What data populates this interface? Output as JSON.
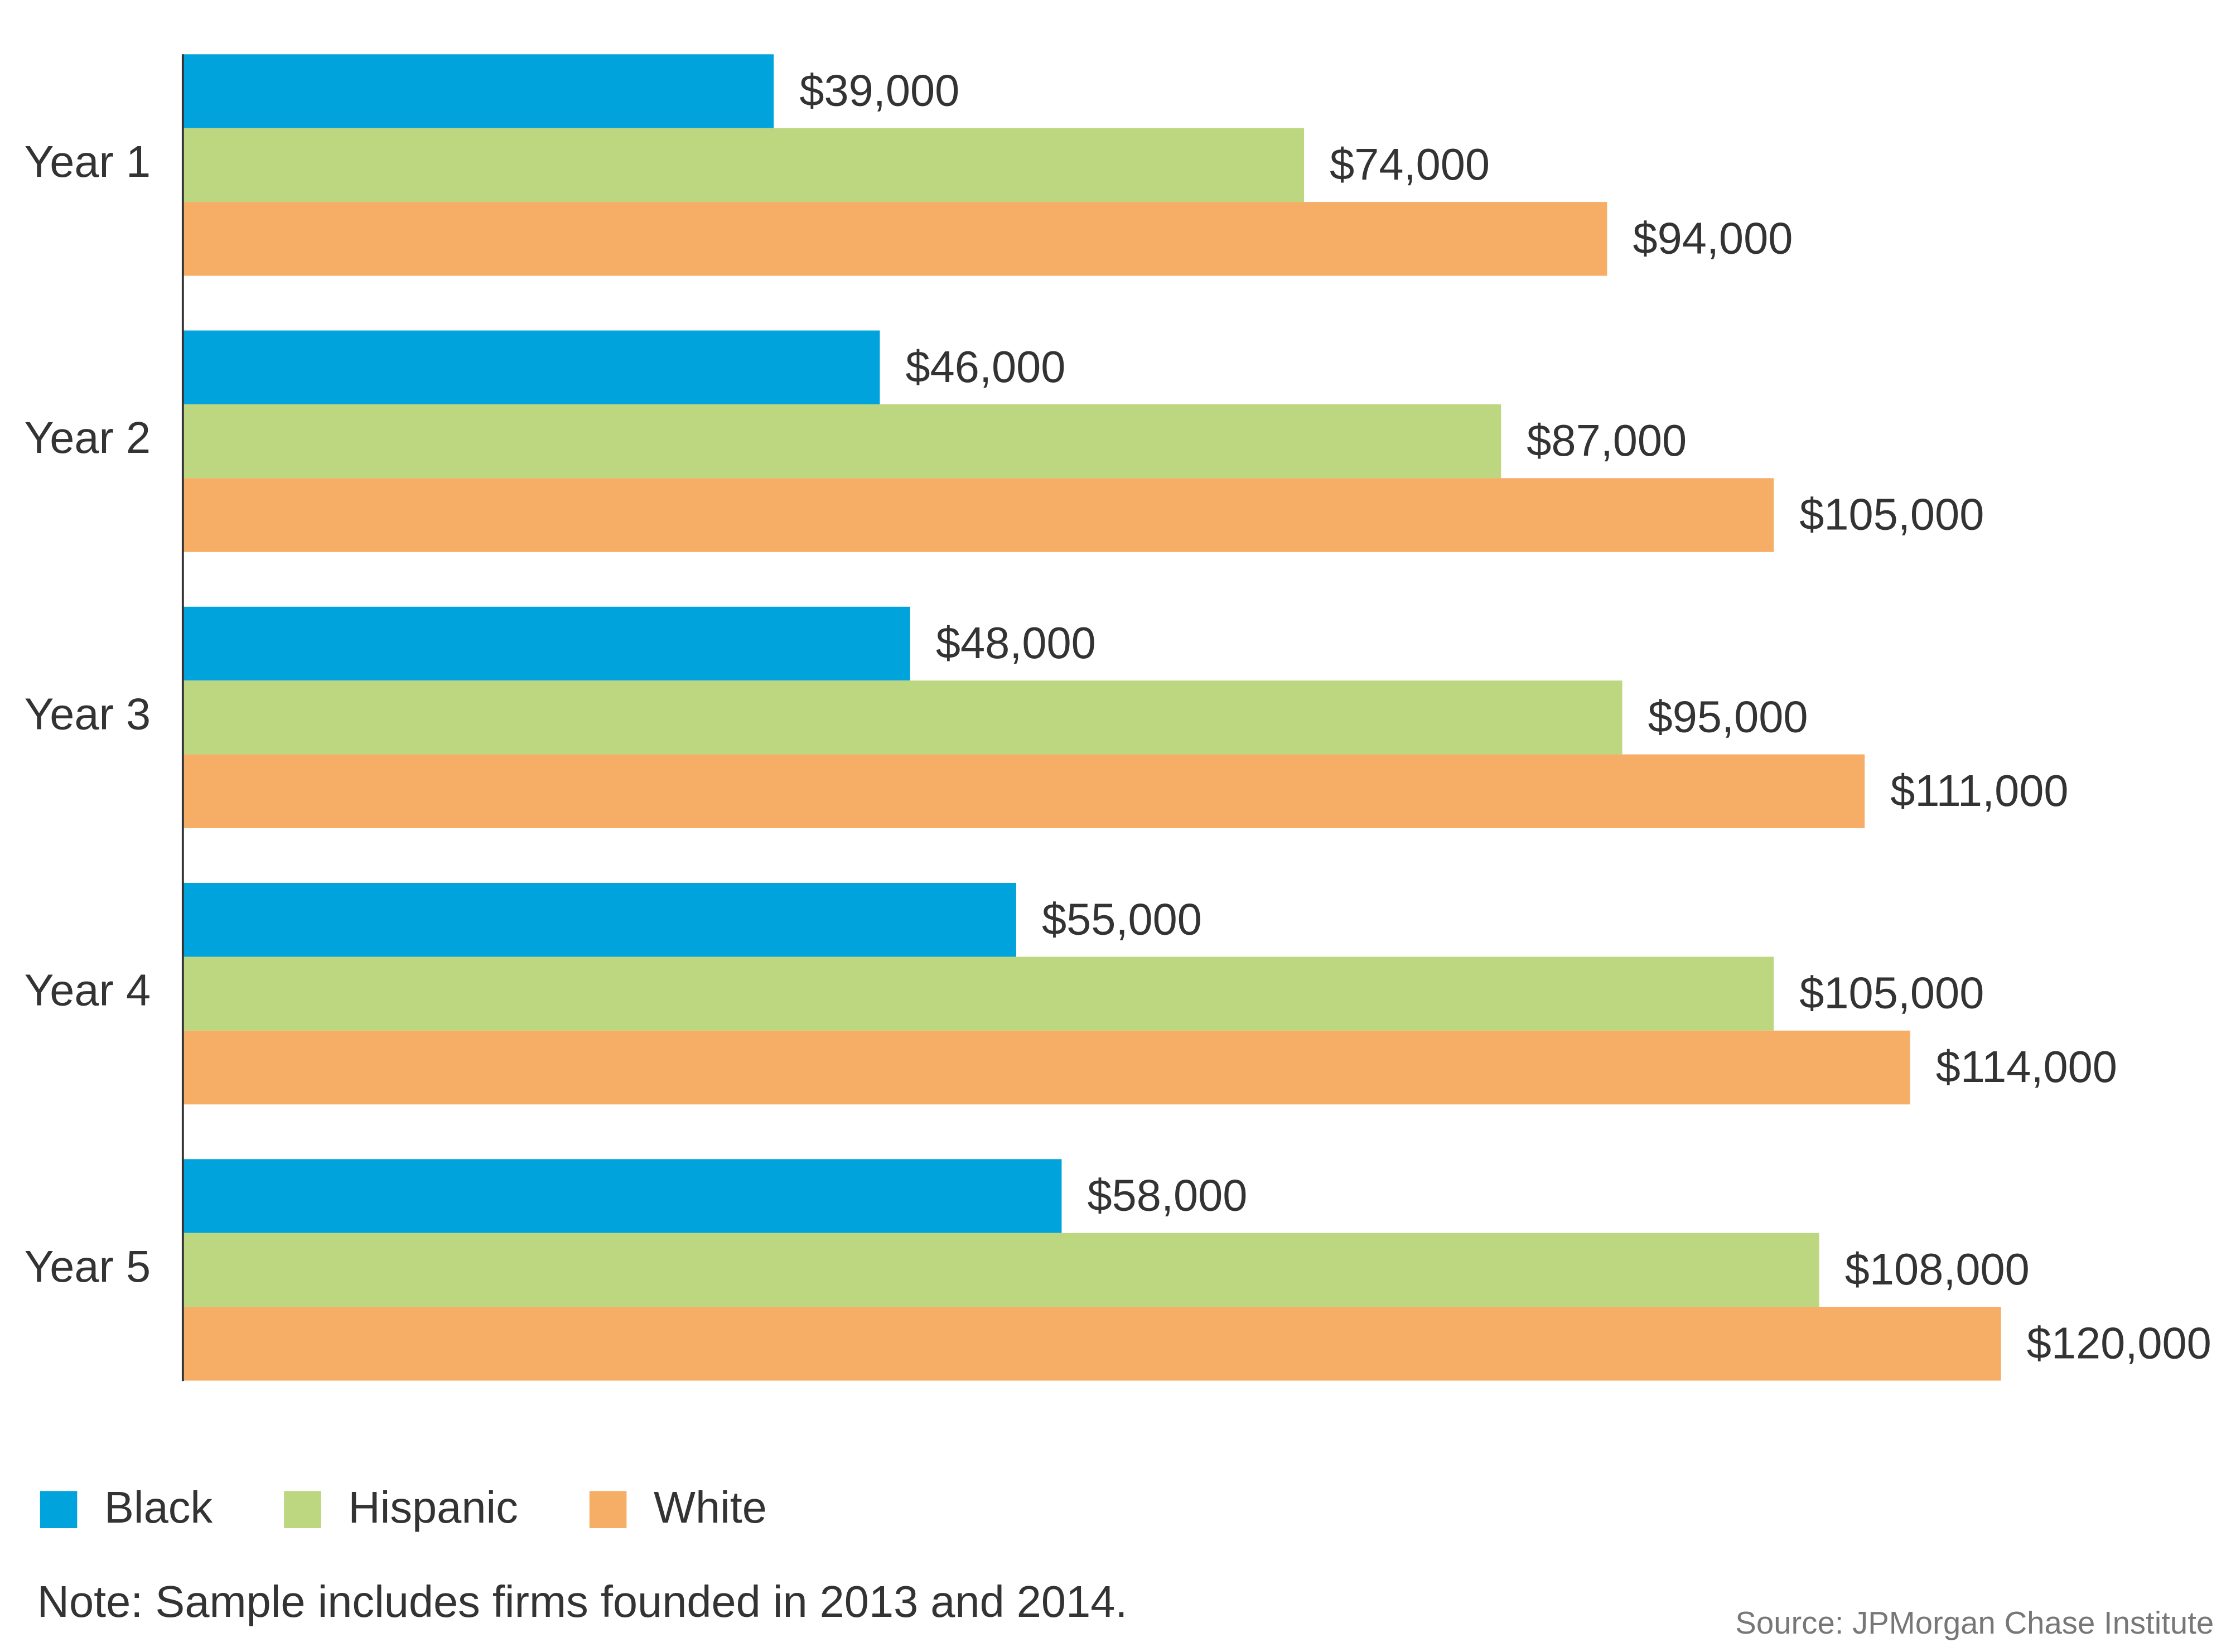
{
  "chart_data": {
    "type": "hbar",
    "categories": [
      "Year 1",
      "Year 2",
      "Year 3",
      "Year 4",
      "Year 5"
    ],
    "series": [
      {
        "name": "Black",
        "color": "#00a3db",
        "values": [
          39000,
          46000,
          48000,
          55000,
          58000
        ],
        "value_labels": [
          "$39,000",
          "$46,000",
          "$48,000",
          "$55,000",
          "$58,000"
        ]
      },
      {
        "name": "Hispanic",
        "color": "#bdd780",
        "values": [
          74000,
          87000,
          95000,
          105000,
          108000
        ],
        "value_labels": [
          "$74,000",
          "$87,000",
          "$95,000",
          "$105,000",
          "$108,000"
        ]
      },
      {
        "name": "White",
        "color": "#f6ad66",
        "values": [
          94000,
          105000,
          111000,
          114000,
          120000
        ],
        "value_labels": [
          "$94,000",
          "$105,000",
          "$111,000",
          "$114,000",
          "$120,000"
        ]
      }
    ],
    "xlim": [
      0,
      120000
    ],
    "legend": "bottom-left",
    "note": "Note: Sample includes firms founded in 2013 and 2014.",
    "source": "Source: JPMorgan Chase Institute"
  }
}
